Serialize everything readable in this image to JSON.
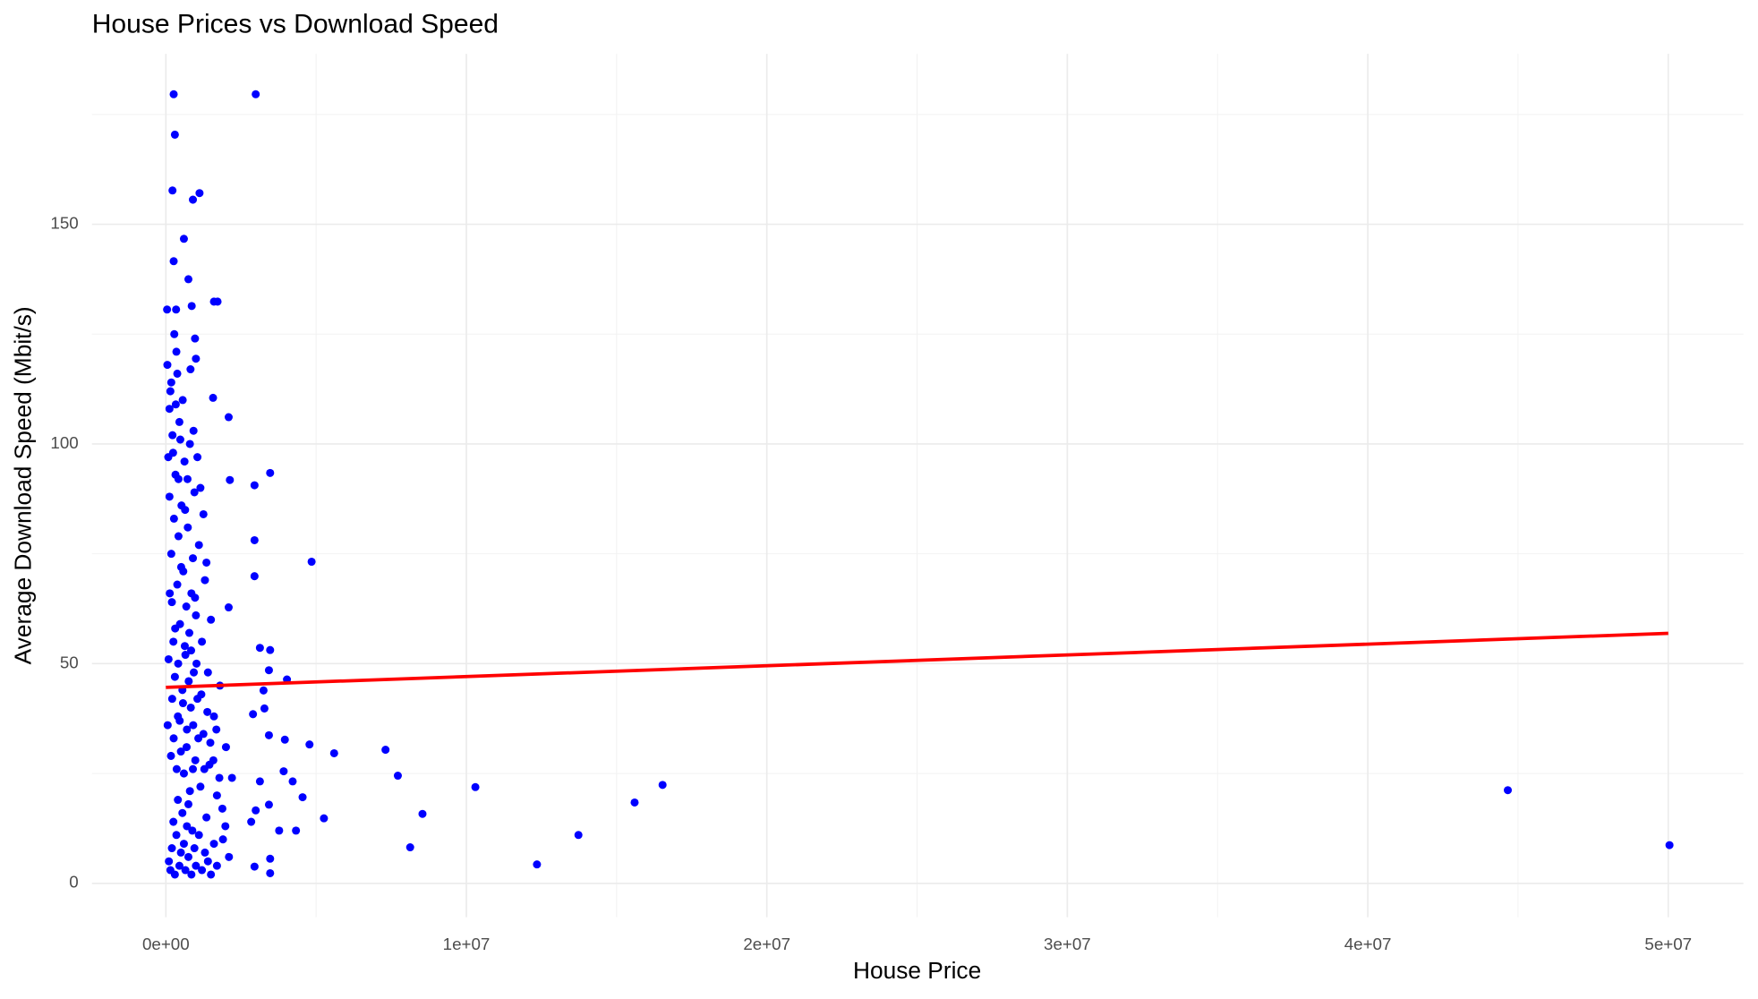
{
  "chart_data": {
    "type": "scatter",
    "title": "House Prices vs Download Speed",
    "x_label": "House Price",
    "y_label": "Average Download Speed (Mbit/s)",
    "color": "#0000ff",
    "grid": true,
    "xlim": [
      -2460000,
      52500000
    ],
    "ylim": [
      -7.7,
      188.8
    ],
    "xticks": [
      {
        "value": 0,
        "label": "0e+00"
      },
      {
        "value": 10000000,
        "label": "1e+07"
      },
      {
        "value": 20000000,
        "label": "2e+07"
      },
      {
        "value": 30000000,
        "label": "3e+07"
      },
      {
        "value": 40000000,
        "label": "4e+07"
      },
      {
        "value": 50000000,
        "label": "5e+07"
      }
    ],
    "yticks": [
      0,
      50,
      100,
      150
    ],
    "x_minor_grid": [
      5000000,
      15000000,
      25000000,
      35000000,
      45000000
    ],
    "y_minor_grid": [
      25,
      75,
      125,
      175
    ],
    "x": [
      50000,
      80000,
      120000,
      150000,
      180000,
      200000,
      220000,
      250000,
      270000,
      300000,
      320000,
      350000,
      380000,
      400000,
      420000,
      450000,
      470000,
      500000,
      520000,
      550000,
      580000,
      600000,
      620000,
      650000,
      680000,
      700000,
      730000,
      750000,
      780000,
      800000,
      830000,
      850000,
      880000,
      900000,
      930000,
      950000,
      980000,
      1000000,
      1050000,
      1100000,
      1150000,
      1200000,
      1250000,
      1300000,
      1350000,
      1400000,
      1450000,
      1500000,
      1600000,
      1700000,
      1800000,
      1900000,
      2000000,
      2100000,
      2200000,
      100000,
      150000,
      200000,
      250000,
      300000,
      350000,
      400000,
      450000,
      500000,
      550000,
      600000,
      650000,
      700000,
      750000,
      800000,
      850000,
      900000,
      950000,
      1000000,
      1100000,
      1200000,
      1300000,
      1400000,
      1500000,
      1600000,
      1700000,
      120000,
      180000,
      240000,
      280000,
      330000,
      380000,
      420000,
      480000,
      560000,
      640000,
      720000,
      820000,
      920000,
      1050000,
      1150000,
      1250000,
      1350000,
      60000,
      90000,
      130000,
      170000,
      210000,
      260000,
      310000,
      360000,
      410000,
      460000,
      510000,
      570000,
      630000,
      690000,
      760000,
      840000,
      910000,
      970000,
      1020000,
      1080000,
      1180000,
      1280000,
      1380000,
      1480000,
      1580000,
      1680000,
      1780000,
      1880000,
      1980000,
      260000,
      2990000,
      300000,
      220000,
      1120000,
      900000,
      600000,
      260000,
      750000,
      1600000,
      1720000,
      860000,
      40000,
      340000,
      970000,
      1000000,
      1570000,
      2090000,
      3470000,
      2950000,
      2130000,
      2950000,
      4850000,
      2950000,
      2090000,
      3130000,
      3470000,
      4030000,
      3430000,
      3250000,
      3280000,
      3960000,
      4780000,
      5600000,
      7310000,
      3430000,
      7720000,
      3920000,
      4220000,
      3130000,
      4550000,
      5260000,
      3430000,
      4330000,
      3770000,
      10300000,
      8540000,
      8130000,
      12350000,
      13730000,
      15600000,
      16530000,
      44660000,
      50040000,
      3470000,
      3470000,
      2950000,
      2840000,
      2990000,
      2900000
    ],
    "values": [
      118,
      97,
      88,
      112,
      75,
      64,
      102,
      55,
      83,
      47,
      93,
      121,
      68,
      38,
      79,
      105,
      59,
      30,
      86,
      44,
      71,
      25,
      96,
      52,
      63,
      35,
      81,
      18,
      57,
      100,
      40,
      66,
      12,
      74,
      48,
      89,
      28,
      61,
      42,
      77,
      22,
      55,
      34,
      69,
      15,
      48,
      27,
      60,
      38,
      20,
      45,
      10,
      31,
      6,
      24,
      5,
      3,
      8,
      14,
      2,
      11,
      19,
      4,
      7,
      16,
      9,
      3,
      13,
      6,
      21,
      2,
      26,
      8,
      4,
      11,
      3,
      7,
      5,
      2,
      9,
      4,
      108,
      114,
      98,
      125,
      109,
      116,
      92,
      101,
      110,
      85,
      92,
      117,
      103,
      97,
      90,
      84,
      73,
      36,
      51,
      66,
      29,
      42,
      33,
      58,
      26,
      50,
      37,
      72,
      41,
      54,
      31,
      46,
      53,
      36,
      65,
      50,
      33,
      43,
      26,
      39,
      32,
      28,
      35,
      24,
      17,
      13,
      179.6,
      179.6,
      170.4,
      157.7,
      157.1,
      155.6,
      146.7,
      141.6,
      137.5,
      132.4,
      132.4,
      131.4,
      130.6,
      130.6,
      124,
      119.4,
      110.5,
      106.1,
      93.4,
      90.6,
      91.8,
      78.1,
      73.2,
      69.9,
      62.8,
      53.6,
      53.1,
      46.4,
      48.5,
      43.9,
      39.8,
      32.7,
      31.6,
      29.6,
      30.4,
      33.7,
      24.5,
      25.5,
      23.2,
      23.2,
      19.6,
      14.8,
      17.9,
      12,
      12,
      21.9,
      15.8,
      8.2,
      4.3,
      11,
      18.4,
      22.4,
      21.2,
      8.7,
      5.6,
      2.3,
      3.8,
      14,
      16.6,
      38.5
    ],
    "trend_line": {
      "x": [
        0,
        50000000
      ],
      "values": [
        44.6,
        56.9
      ],
      "color": "#ff0000"
    }
  }
}
